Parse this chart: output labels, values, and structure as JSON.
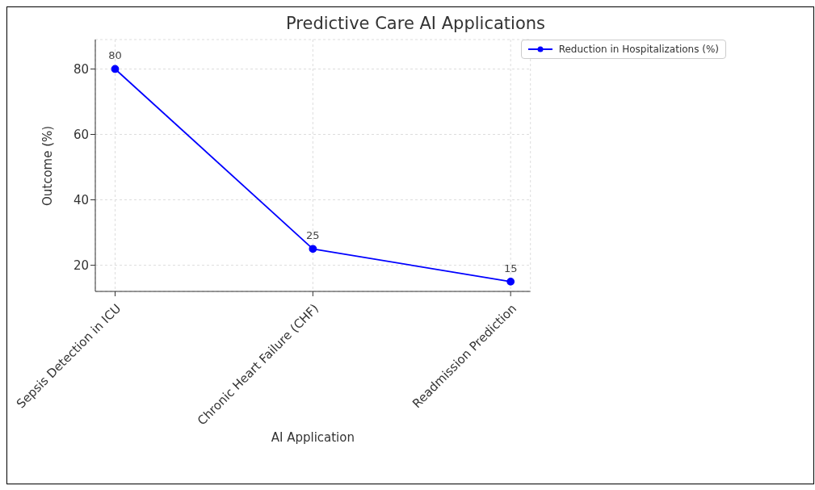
{
  "chart_data": {
    "type": "line",
    "title": "Predictive Care AI Applications",
    "xlabel": "AI Application",
    "ylabel": "Outcome (%)",
    "categories": [
      "Sepsis Detection in ICU",
      "Chronic Heart Failure (CHF)",
      "Readmission Prediction"
    ],
    "series": [
      {
        "name": "Reduction in Hospitalizations (%)",
        "color": "#0000ff",
        "values": [
          80,
          25,
          15
        ]
      }
    ],
    "ylim": [
      12,
      89
    ],
    "yticks": [
      20,
      40,
      60,
      80
    ],
    "grid": true,
    "legend": "top right",
    "marker": "circle",
    "line_style": "solid",
    "data_labels": true
  }
}
